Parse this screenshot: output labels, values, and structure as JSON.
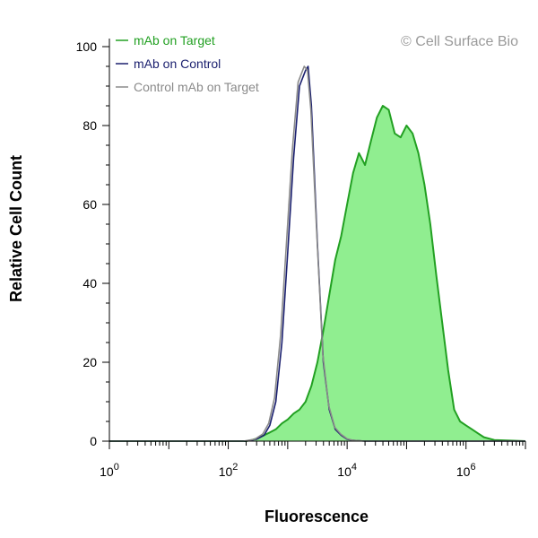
{
  "chart_data": {
    "type": "area",
    "xlabel": "Fluorescence",
    "ylabel": "Relative Cell Count",
    "watermark": "© Cell Surface Bio",
    "x_scale": "log",
    "xlim": [
      1,
      10000000
    ],
    "ylim": [
      0,
      100
    ],
    "y_ticks": [
      0,
      20,
      40,
      60,
      80,
      100
    ],
    "x_ticks": [
      {
        "value": 1,
        "base": "10",
        "exp": "0"
      },
      {
        "value": 100,
        "base": "10",
        "exp": "2"
      },
      {
        "value": 10000,
        "base": "10",
        "exp": "4"
      },
      {
        "value": 1000000,
        "base": "10",
        "exp": "6"
      }
    ],
    "grid": false,
    "legend_position": "top-left",
    "series": [
      {
        "name": "mAb on Target",
        "color": "#22a022",
        "fill": "#90ee90",
        "filled": true,
        "x": [
          1,
          200,
          250,
          320,
          400,
          500,
          630,
          800,
          1000,
          1260,
          1580,
          2000,
          2510,
          3160,
          3980,
          5010,
          6310,
          7940,
          10000,
          12600,
          15800,
          20000,
          25100,
          31600,
          39800,
          50100,
          63100,
          79400,
          100000,
          126000,
          158000,
          200000,
          251000,
          316000,
          398000,
          501000,
          631000,
          794000,
          1000000,
          1260000,
          1580000,
          2000000,
          3000000,
          10000000
        ],
        "y": [
          0,
          0,
          0.3,
          0.8,
          1.5,
          2.2,
          3,
          4.5,
          5.5,
          7,
          8,
          10,
          14,
          20,
          28,
          37,
          46,
          52,
          60,
          68,
          73,
          70,
          76,
          82,
          85,
          84,
          78,
          77,
          80,
          78,
          73,
          65,
          55,
          42,
          30,
          18,
          8,
          5,
          4,
          3,
          2,
          1,
          0.3,
          0
        ]
      },
      {
        "name": "mAb on Control",
        "color": "#1a1f6e",
        "filled": false,
        "x": [
          1,
          200,
          300,
          400,
          500,
          630,
          800,
          1000,
          1260,
          1580,
          2000,
          2200,
          2510,
          3160,
          3980,
          5010,
          6310,
          7940,
          10000,
          12600,
          20000,
          10000000
        ],
        "y": [
          0,
          0,
          0.5,
          1.5,
          4,
          10,
          25,
          48,
          72,
          90,
          94,
          95,
          85,
          50,
          20,
          8,
          3,
          1.5,
          0.5,
          0.2,
          0,
          0
        ]
      },
      {
        "name": "Control mAb on Target",
        "color": "#8a8a8a",
        "filled": false,
        "x": [
          1,
          180,
          280,
          380,
          480,
          600,
          760,
          950,
          1200,
          1500,
          1900,
          2150,
          2450,
          3100,
          3900,
          4900,
          6200,
          7800,
          10000,
          12600,
          20000,
          10000000
        ],
        "y": [
          0,
          0,
          0.5,
          1.8,
          4.5,
          11,
          27,
          50,
          74,
          91,
          95,
          94,
          84,
          52,
          22,
          9,
          3.5,
          1.8,
          0.6,
          0.2,
          0,
          0
        ]
      }
    ]
  }
}
